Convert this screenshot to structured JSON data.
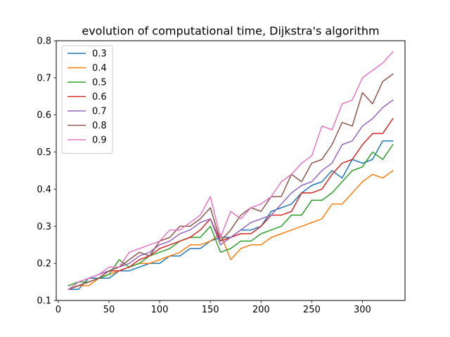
{
  "chart_data": {
    "type": "line",
    "title": "evolution of computational time, Dijkstra's algorithm",
    "xlabel": "",
    "ylabel": "",
    "xlim": [
      -2,
      342
    ],
    "ylim": [
      0.1,
      0.8
    ],
    "xticks": [
      0,
      50,
      100,
      150,
      200,
      250,
      300
    ],
    "yticks": [
      0.1,
      0.2,
      0.3,
      0.4,
      0.5,
      0.6,
      0.7,
      0.8
    ],
    "xtick_labels": [
      "0",
      "50",
      "100",
      "150",
      "200",
      "250",
      "300"
    ],
    "ytick_labels": [
      "0.1",
      "0.2",
      "0.3",
      "0.4",
      "0.5",
      "0.6",
      "0.7",
      "0.8"
    ],
    "grid": false,
    "legend_position": "upper-left",
    "x": [
      10,
      20,
      30,
      40,
      50,
      60,
      70,
      80,
      90,
      100,
      110,
      120,
      130,
      140,
      150,
      160,
      170,
      180,
      190,
      200,
      210,
      220,
      230,
      240,
      250,
      260,
      270,
      280,
      290,
      300,
      310,
      320,
      330
    ],
    "series": [
      {
        "name": "0.3",
        "color": "#1f77b4",
        "values": [
          0.13,
          0.13,
          0.16,
          0.16,
          0.16,
          0.18,
          0.18,
          0.19,
          0.2,
          0.2,
          0.22,
          0.22,
          0.24,
          0.24,
          0.26,
          0.27,
          0.27,
          0.29,
          0.29,
          0.3,
          0.34,
          0.35,
          0.36,
          0.39,
          0.41,
          0.42,
          0.45,
          0.43,
          0.48,
          0.47,
          0.48,
          0.53,
          0.53
        ]
      },
      {
        "name": "0.4",
        "color": "#ff7f0e",
        "values": [
          0.13,
          0.14,
          0.14,
          0.16,
          0.17,
          0.18,
          0.19,
          0.2,
          0.2,
          0.21,
          0.22,
          0.23,
          0.25,
          0.25,
          0.26,
          0.28,
          0.21,
          0.24,
          0.25,
          0.25,
          0.27,
          0.28,
          0.29,
          0.3,
          0.31,
          0.32,
          0.36,
          0.36,
          0.39,
          0.42,
          0.44,
          0.43,
          0.45
        ]
      },
      {
        "name": "0.5",
        "color": "#2ca02c",
        "values": [
          0.14,
          0.15,
          0.15,
          0.16,
          0.17,
          0.21,
          0.19,
          0.2,
          0.22,
          0.23,
          0.24,
          0.26,
          0.27,
          0.27,
          0.3,
          0.23,
          0.24,
          0.26,
          0.26,
          0.28,
          0.29,
          0.3,
          0.33,
          0.33,
          0.37,
          0.37,
          0.39,
          0.42,
          0.45,
          0.46,
          0.5,
          0.48,
          0.52
        ]
      },
      {
        "name": "0.6",
        "color": "#d62728",
        "values": [
          0.13,
          0.14,
          0.15,
          0.16,
          0.18,
          0.18,
          0.19,
          0.21,
          0.22,
          0.24,
          0.25,
          0.26,
          0.27,
          0.29,
          0.32,
          0.26,
          0.27,
          0.28,
          0.28,
          0.3,
          0.33,
          0.33,
          0.34,
          0.39,
          0.39,
          0.4,
          0.44,
          0.47,
          0.48,
          0.52,
          0.55,
          0.55,
          0.59
        ]
      },
      {
        "name": "0.7",
        "color": "#9467bd",
        "values": [
          0.13,
          0.15,
          0.16,
          0.17,
          0.18,
          0.19,
          0.2,
          0.22,
          0.23,
          0.25,
          0.26,
          0.28,
          0.29,
          0.31,
          0.32,
          0.25,
          0.27,
          0.29,
          0.31,
          0.32,
          0.33,
          0.36,
          0.39,
          0.41,
          0.42,
          0.45,
          0.47,
          0.52,
          0.53,
          0.57,
          0.59,
          0.62,
          0.64
        ]
      },
      {
        "name": "0.8",
        "color": "#8c564b",
        "values": [
          0.13,
          0.14,
          0.15,
          0.16,
          0.18,
          0.19,
          0.21,
          0.23,
          0.22,
          0.26,
          0.27,
          0.3,
          0.3,
          0.32,
          0.35,
          0.26,
          0.29,
          0.33,
          0.35,
          0.34,
          0.38,
          0.38,
          0.44,
          0.42,
          0.47,
          0.48,
          0.52,
          0.58,
          0.57,
          0.66,
          0.63,
          0.69,
          0.71
        ]
      },
      {
        "name": "0.9",
        "color": "#e377c2",
        "values": [
          0.13,
          0.15,
          0.16,
          0.17,
          0.19,
          0.19,
          0.23,
          0.24,
          0.25,
          0.26,
          0.29,
          0.29,
          0.31,
          0.33,
          0.38,
          0.27,
          0.34,
          0.32,
          0.35,
          0.36,
          0.38,
          0.42,
          0.44,
          0.47,
          0.49,
          0.57,
          0.56,
          0.63,
          0.64,
          0.7,
          0.72,
          0.74,
          0.77
        ]
      }
    ]
  }
}
